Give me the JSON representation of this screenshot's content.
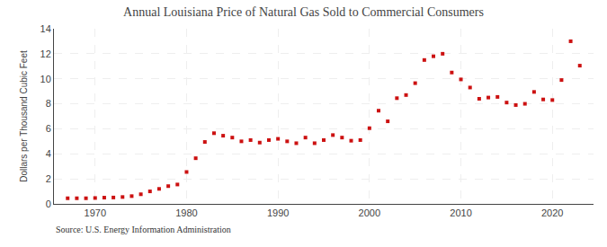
{
  "chart_data": {
    "type": "scatter",
    "title": "Annual Louisiana Price of Natural Gas Sold to Commercial Consumers",
    "ylabel": "Dollars per Thousand Cubic Feet",
    "annotations": [
      "Source: U.S. Energy Information Administration"
    ],
    "x": [
      1967,
      1968,
      1969,
      1970,
      1971,
      1972,
      1973,
      1974,
      1975,
      1976,
      1977,
      1978,
      1979,
      1980,
      1981,
      1982,
      1983,
      1984,
      1985,
      1986,
      1987,
      1988,
      1989,
      1990,
      1991,
      1992,
      1993,
      1994,
      1995,
      1996,
      1997,
      1998,
      1999,
      2000,
      2001,
      2002,
      2003,
      2004,
      2005,
      2006,
      2007,
      2008,
      2009,
      2010,
      2011,
      2012,
      2013,
      2014,
      2015,
      2016,
      2017,
      2018,
      2019,
      2020,
      2021,
      2022,
      2023
    ],
    "values": [
      0.45,
      0.45,
      0.45,
      0.47,
      0.5,
      0.51,
      0.55,
      0.62,
      0.77,
      1.0,
      1.2,
      1.42,
      1.55,
      2.55,
      3.65,
      4.95,
      5.65,
      5.45,
      5.3,
      5.0,
      5.1,
      4.9,
      5.1,
      5.2,
      5.0,
      4.85,
      5.3,
      4.85,
      5.1,
      5.5,
      5.3,
      5.05,
      5.1,
      6.05,
      7.45,
      6.6,
      8.45,
      8.7,
      9.65,
      11.5,
      11.8,
      12.0,
      10.5,
      9.95,
      9.3,
      8.4,
      8.5,
      8.55,
      8.1,
      7.9,
      8.0,
      8.95,
      8.35,
      8.3,
      9.9,
      13.0,
      11.05
    ],
    "color": "#cc1111",
    "marker": "square",
    "xlim": [
      1965.5,
      2024.5
    ],
    "xticks": [
      1970,
      1980,
      1990,
      2000,
      2010,
      2020
    ],
    "ylim": [
      0,
      14
    ],
    "yticks": [
      0,
      2,
      4,
      6,
      8,
      10,
      12,
      14
    ],
    "grid": true
  }
}
